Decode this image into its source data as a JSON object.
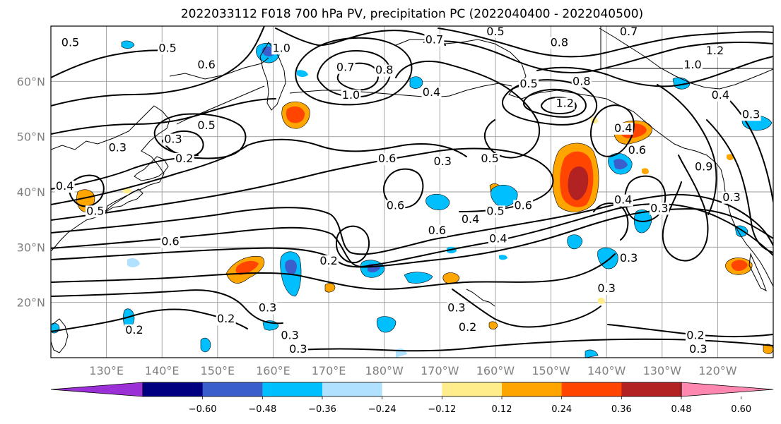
{
  "title": "2022033112 F018 700 hPa PV, precipitation PC (2022040400 - 2022040500)",
  "axes": {
    "lat_ticks": [
      {
        "label": "60°N",
        "lat": 60
      },
      {
        "label": "50°N",
        "lat": 50
      },
      {
        "label": "40°N",
        "lat": 40
      },
      {
        "label": "30°N",
        "lat": 30
      },
      {
        "label": "20°N",
        "lat": 20
      }
    ],
    "lon_ticks": [
      {
        "label": "130°E",
        "lon": 130
      },
      {
        "label": "140°E",
        "lon": 140
      },
      {
        "label": "150°E",
        "lon": 150
      },
      {
        "label": "160°E",
        "lon": 160
      },
      {
        "label": "170°E",
        "lon": 170
      },
      {
        "label": "180°W",
        "lon": 180
      },
      {
        "label": "170°W",
        "lon": 190
      },
      {
        "label": "160°W",
        "lon": 200
      },
      {
        "label": "150°W",
        "lon": 210
      },
      {
        "label": "140°W",
        "lon": 220
      },
      {
        "label": "130°W",
        "lon": 230
      },
      {
        "label": "120°W",
        "lon": 240
      }
    ],
    "lon_range": [
      120,
      250
    ],
    "lat_range": [
      10,
      70
    ]
  },
  "colorbar": {
    "colors": [
      "#9b30d6",
      "#000080",
      "#3a5fcd",
      "#00bfff",
      "#b0e2ff",
      "#ffffff",
      "#ffec8b",
      "#ffa500",
      "#ff4500",
      "#b22222",
      "#ff88b0"
    ],
    "labels": [
      "−0.60",
      "−0.48",
      "−0.36",
      "−0.24",
      "−0.12",
      "0.12",
      "0.24",
      "0.36",
      "0.48",
      "0.60"
    ]
  },
  "contour_labels": [
    {
      "text": "0.5",
      "lon": 123.5,
      "lat": 66.5
    },
    {
      "text": "0.5",
      "lon": 141,
      "lat": 65.5
    },
    {
      "text": "0.6",
      "lon": 148,
      "lat": 62.5
    },
    {
      "text": "1.0",
      "lon": 161.5,
      "lat": 65.5
    },
    {
      "text": "0.7",
      "lon": 173,
      "lat": 62
    },
    {
      "text": "0.7",
      "lon": 189,
      "lat": 67
    },
    {
      "text": "0.8",
      "lon": 180,
      "lat": 61.5
    },
    {
      "text": "1.0",
      "lon": 174,
      "lat": 57
    },
    {
      "text": "0.4",
      "lon": 188.5,
      "lat": 57.5
    },
    {
      "text": "0.5",
      "lon": 200,
      "lat": 68.5
    },
    {
      "text": "0.8",
      "lon": 211.5,
      "lat": 66.5
    },
    {
      "text": "0.7",
      "lon": 224,
      "lat": 68.5
    },
    {
      "text": "1.0",
      "lon": 235.5,
      "lat": 62.5
    },
    {
      "text": "1.2",
      "lon": 239.5,
      "lat": 65
    },
    {
      "text": "0.5",
      "lon": 206,
      "lat": 59
    },
    {
      "text": "0.8",
      "lon": 215.5,
      "lat": 59.5
    },
    {
      "text": "1.2",
      "lon": 212.5,
      "lat": 55.5
    },
    {
      "text": "0.4",
      "lon": 240.5,
      "lat": 57
    },
    {
      "text": "0.3",
      "lon": 246,
      "lat": 53.5
    },
    {
      "text": "0.5",
      "lon": 148,
      "lat": 51.5
    },
    {
      "text": "0.3",
      "lon": 142,
      "lat": 49
    },
    {
      "text": "0.2",
      "lon": 144,
      "lat": 45.5
    },
    {
      "text": "0.3",
      "lon": 132,
      "lat": 47.5
    },
    {
      "text": "0.4",
      "lon": 223,
      "lat": 51
    },
    {
      "text": "0.6",
      "lon": 225.5,
      "lat": 47
    },
    {
      "text": "0.6",
      "lon": 180.5,
      "lat": 45.5
    },
    {
      "text": "0.3",
      "lon": 190.5,
      "lat": 45
    },
    {
      "text": "0.5",
      "lon": 199,
      "lat": 45.5
    },
    {
      "text": "0.4",
      "lon": 122.5,
      "lat": 40.5
    },
    {
      "text": "0.5",
      "lon": 128,
      "lat": 36
    },
    {
      "text": "0.6",
      "lon": 141.5,
      "lat": 30.5
    },
    {
      "text": "0.6",
      "lon": 182,
      "lat": 37
    },
    {
      "text": "0.6",
      "lon": 189.5,
      "lat": 32.5
    },
    {
      "text": "0.4",
      "lon": 195.5,
      "lat": 34.5
    },
    {
      "text": "0.5",
      "lon": 200,
      "lat": 36
    },
    {
      "text": "0.6",
      "lon": 205,
      "lat": 37
    },
    {
      "text": "0.4",
      "lon": 200.5,
      "lat": 31
    },
    {
      "text": "0.2",
      "lon": 170,
      "lat": 27
    },
    {
      "text": "0.3",
      "lon": 224,
      "lat": 27.5
    },
    {
      "text": "0.3",
      "lon": 229.5,
      "lat": 36.5
    },
    {
      "text": "0.4",
      "lon": 223,
      "lat": 38
    },
    {
      "text": "0.3",
      "lon": 242.5,
      "lat": 38.5
    },
    {
      "text": "0.9",
      "lon": 237.5,
      "lat": 44
    },
    {
      "text": "0.3",
      "lon": 220,
      "lat": 22
    },
    {
      "text": "0.3",
      "lon": 193,
      "lat": 18.5
    },
    {
      "text": "0.2",
      "lon": 195,
      "lat": 15
    },
    {
      "text": "0.3",
      "lon": 159,
      "lat": 18.5
    },
    {
      "text": "0.2",
      "lon": 151.5,
      "lat": 16.5
    },
    {
      "text": "0.3",
      "lon": 163,
      "lat": 13.5
    },
    {
      "text": "0.2",
      "lon": 135,
      "lat": 14.5
    },
    {
      "text": "0.3",
      "lon": 164.5,
      "lat": 11
    },
    {
      "text": "0.2",
      "lon": 236,
      "lat": 13.5
    },
    {
      "text": "0.3",
      "lon": 236.5,
      "lat": 11
    }
  ]
}
